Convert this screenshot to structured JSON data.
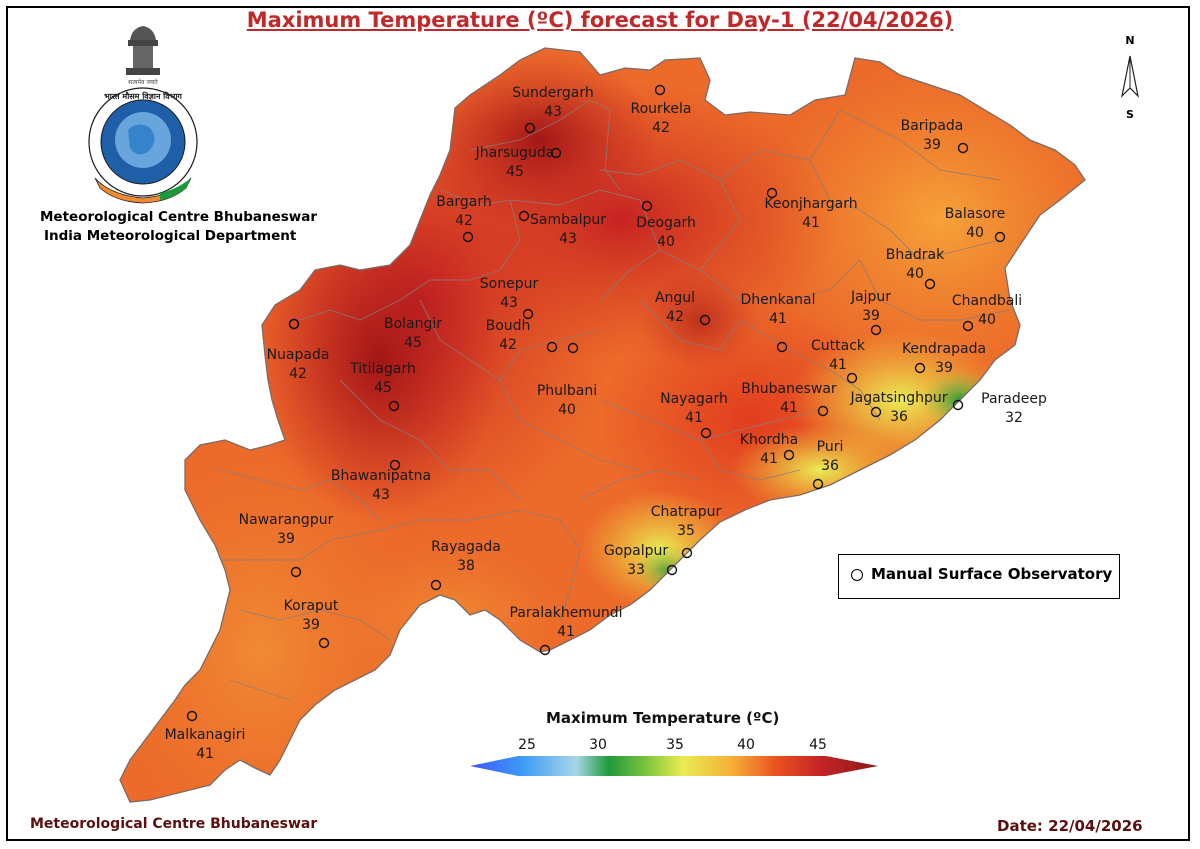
{
  "title": "Maximum Temperature (ºC) forecast for Day-1 (22/04/2026)",
  "organization": {
    "line1": "Meteorological Centre Bhubaneswar",
    "line2": "India Meteorological Department",
    "logo_text": [
      "भारत मौसम विज्ञान विभाग",
      "INDIA METEOROLOGICAL DEPARTMENT",
      "आदित्यात् जायते वृष्टि"
    ]
  },
  "compass": {
    "north": "N",
    "south": "S"
  },
  "legend": {
    "observatory_label": "Manual Surface Observatory"
  },
  "color_scale": {
    "title": "Maximum Temperature (ºC)",
    "ticks": [
      "25",
      "30",
      "35",
      "40",
      "45"
    ],
    "colors": [
      "#3d55ff",
      "#5ab7f0",
      "#a8d6e6",
      "#1f9a3a",
      "#e8ec52",
      "#f6b13a",
      "#e8531f",
      "#c42424",
      "#8e1818"
    ]
  },
  "stations": [
    {
      "name": "Sundergarh",
      "value": "43"
    },
    {
      "name": "Rourkela",
      "value": "42"
    },
    {
      "name": "Jharsuguda",
      "value": "45"
    },
    {
      "name": "Bargarh",
      "value": "42"
    },
    {
      "name": "Sambalpur",
      "value": "43"
    },
    {
      "name": "Deogarh",
      "value": "40"
    },
    {
      "name": "Keonjhargarh",
      "value": "41"
    },
    {
      "name": "Baripada",
      "value": "39"
    },
    {
      "name": "Balasore",
      "value": "40"
    },
    {
      "name": "Bhadrak",
      "value": "40"
    },
    {
      "name": "Chandbali",
      "value": "40"
    },
    {
      "name": "Jajpur",
      "value": "39"
    },
    {
      "name": "Kendrapada",
      "value": "39"
    },
    {
      "name": "Paradeep",
      "value": "32"
    },
    {
      "name": "Jagatsinghpur",
      "value": "36"
    },
    {
      "name": "Cuttack",
      "value": "41"
    },
    {
      "name": "Dhenkanal",
      "value": "41"
    },
    {
      "name": "Angul",
      "value": "42"
    },
    {
      "name": "Sonepur",
      "value": "43"
    },
    {
      "name": "Boudh",
      "value": "42"
    },
    {
      "name": "Bolangir",
      "value": "45"
    },
    {
      "name": "Nuapada",
      "value": "42"
    },
    {
      "name": "Titilagarh",
      "value": "45"
    },
    {
      "name": "Phulbani",
      "value": "40"
    },
    {
      "name": "Nayagarh",
      "value": "41"
    },
    {
      "name": "Bhubaneswar",
      "value": "41"
    },
    {
      "name": "Khordha",
      "value": "41"
    },
    {
      "name": "Puri",
      "value": "36"
    },
    {
      "name": "Bhawanipatna",
      "value": "43"
    },
    {
      "name": "Chatrapur",
      "value": "35"
    },
    {
      "name": "Gopalpur",
      "value": "33"
    },
    {
      "name": "Nawarangpur",
      "value": "39"
    },
    {
      "name": "Rayagada",
      "value": "38"
    },
    {
      "name": "Koraput",
      "value": "39"
    },
    {
      "name": "Paralakhemundi",
      "value": "41"
    },
    {
      "name": "Malkanagiri",
      "value": "41"
    }
  ],
  "footer": {
    "left": "Meteorological Centre Bhubaneswar",
    "right": "Date: 22/04/2026"
  }
}
